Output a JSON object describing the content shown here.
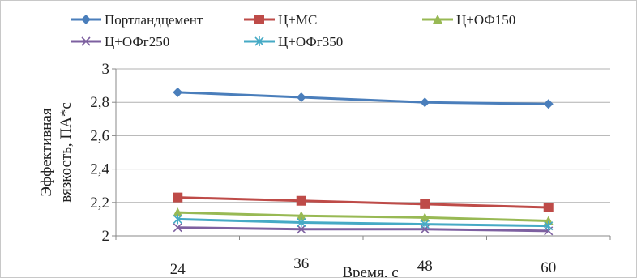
{
  "chart_data": {
    "type": "line",
    "xlabel": "Время, с",
    "ylabel": [
      "Эффективная",
      "вязкость, ПА*с"
    ],
    "categories": [
      "24",
      "36",
      "48",
      "60"
    ],
    "ylim": [
      2,
      3
    ],
    "yticks": [
      "2",
      "2,2",
      "2,4",
      "2,6",
      "2,8",
      "3"
    ],
    "ytick_values": [
      2,
      2.2,
      2.4,
      2.6,
      2.8,
      3
    ],
    "grid": true,
    "legend_position": "top",
    "series": [
      {
        "name": "Портландцемент",
        "values": [
          2.86,
          2.83,
          2.8,
          2.79
        ],
        "color": "#4a7ebb",
        "marker": "diamond"
      },
      {
        "name": "Ц+МС",
        "values": [
          2.23,
          2.21,
          2.19,
          2.17
        ],
        "color": "#be4b48",
        "marker": "square"
      },
      {
        "name": "Ц+ОФ150",
        "values": [
          2.14,
          2.12,
          2.11,
          2.09
        ],
        "color": "#98b954",
        "marker": "triangle"
      },
      {
        "name": "Ц+ОФг250",
        "values": [
          2.05,
          2.04,
          2.04,
          2.03
        ],
        "color": "#7d60a0",
        "marker": "x"
      },
      {
        "name": "Ц+ОФг350",
        "values": [
          2.1,
          2.08,
          2.07,
          2.06
        ],
        "color": "#46aac5",
        "marker": "star"
      }
    ]
  }
}
